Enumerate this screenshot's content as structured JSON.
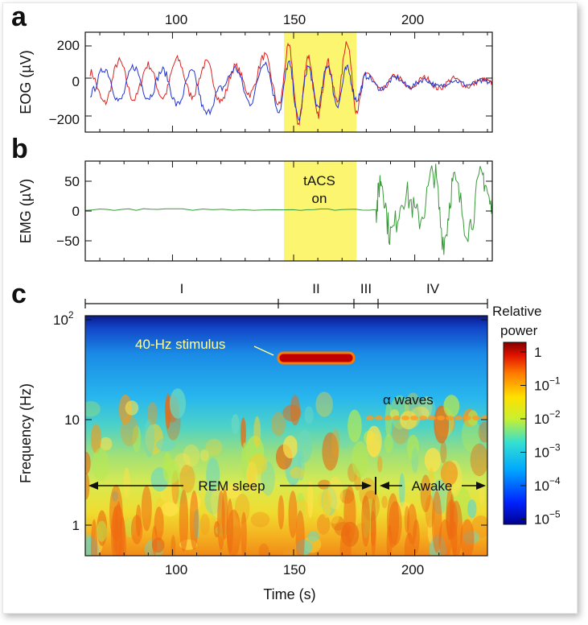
{
  "chart_data": [
    {
      "panel": "a",
      "type": "line",
      "ylabel": "EOG (µV)",
      "xlim": [
        64,
        232
      ],
      "ylim": [
        -270,
        280
      ],
      "x_ticks": [
        "100",
        "150",
        "200"
      ],
      "y_ticks": [
        "200",
        "0",
        "−200"
      ],
      "series": [
        {
          "color": "#dd2222",
          "x": [
            66,
            72,
            78,
            84,
            90,
            96,
            102,
            108,
            114,
            120,
            126,
            132,
            138,
            144,
            148,
            152,
            156,
            160,
            164,
            168,
            172,
            176,
            180,
            186,
            192,
            198,
            204,
            210,
            216,
            222,
            228,
            232
          ],
          "y": [
            60,
            -110,
            120,
            -90,
            100,
            -80,
            130,
            -70,
            110,
            -100,
            90,
            -60,
            150,
            -120,
            200,
            -220,
            150,
            -180,
            120,
            -100,
            230,
            -150,
            60,
            -40,
            40,
            -30,
            30,
            -30,
            25,
            -20,
            20,
            0
          ]
        },
        {
          "color": "#2233cc",
          "x": [
            66,
            72,
            78,
            84,
            90,
            96,
            102,
            108,
            114,
            120,
            126,
            132,
            138,
            144,
            148,
            152,
            156,
            160,
            164,
            168,
            172,
            176,
            180,
            186,
            192,
            198,
            204,
            210,
            216,
            222,
            228,
            232
          ],
          "y": [
            -60,
            80,
            -100,
            90,
            -80,
            70,
            -120,
            60,
            -170,
            -30,
            80,
            -110,
            120,
            -150,
            110,
            -200,
            90,
            -130,
            100,
            -120,
            80,
            -90,
            40,
            -30,
            30,
            -20,
            20,
            -20,
            15,
            -10,
            10,
            0
          ]
        }
      ]
    },
    {
      "panel": "b",
      "type": "line",
      "ylabel": "EMG (µV)",
      "xlim": [
        64,
        232
      ],
      "ylim": [
        -85,
        80
      ],
      "y_ticks": [
        "50",
        "0",
        "−50"
      ],
      "series": [
        {
          "color": "#3a9a3a",
          "x": [
            64,
            100,
            150,
            184,
            186,
            190,
            196,
            202,
            208,
            212,
            216,
            222,
            228,
            232
          ],
          "y": [
            0,
            0,
            0,
            0,
            50,
            -40,
            25,
            -15,
            60,
            -50,
            45,
            -30,
            55,
            0
          ]
        }
      ]
    },
    {
      "panel": "c",
      "type": "heatmap",
      "xlabel": "Time (s)",
      "ylabel": "Frequency (Hz)",
      "xlim": [
        64,
        232
      ],
      "ylim": [
        0.55,
        100
      ],
      "y_scale": "log",
      "x_ticks": [
        "100",
        "150",
        "200"
      ],
      "colorbar_label": "Relative power",
      "stimulus_frequency": 40,
      "stimulus_interval": [
        145,
        175
      ]
    }
  ],
  "figure": {
    "letters": [
      "a",
      "b",
      "c"
    ],
    "y_ticks_c": [
      "10",
      "1"
    ],
    "y_tick_top_base": "10",
    "y_tick_top_exp": "2",
    "stages": [
      "I",
      "II",
      "III",
      "IV"
    ],
    "tacs_line1": "tACS",
    "tacs_line2": "on",
    "stimulus_label": "40-Hz stimulus",
    "alpha_label": "α waves",
    "rem_label": "REM sleep",
    "awake_label": "Awake",
    "colorbar_title_1": "Relative",
    "colorbar_title_2": "power",
    "colorbar_ticks": [
      {
        "base": "1",
        "exp": ""
      },
      {
        "base": "10",
        "exp": "−1"
      },
      {
        "base": "10",
        "exp": "−2"
      },
      {
        "base": "10",
        "exp": "−3"
      },
      {
        "base": "10",
        "exp": "−4"
      },
      {
        "base": "10",
        "exp": "−5"
      }
    ],
    "colors": {
      "highlight": "#fbf570",
      "eog_red": "#dd2222",
      "eog_blue": "#2233cc",
      "emg_green": "#3a9a3a"
    }
  }
}
